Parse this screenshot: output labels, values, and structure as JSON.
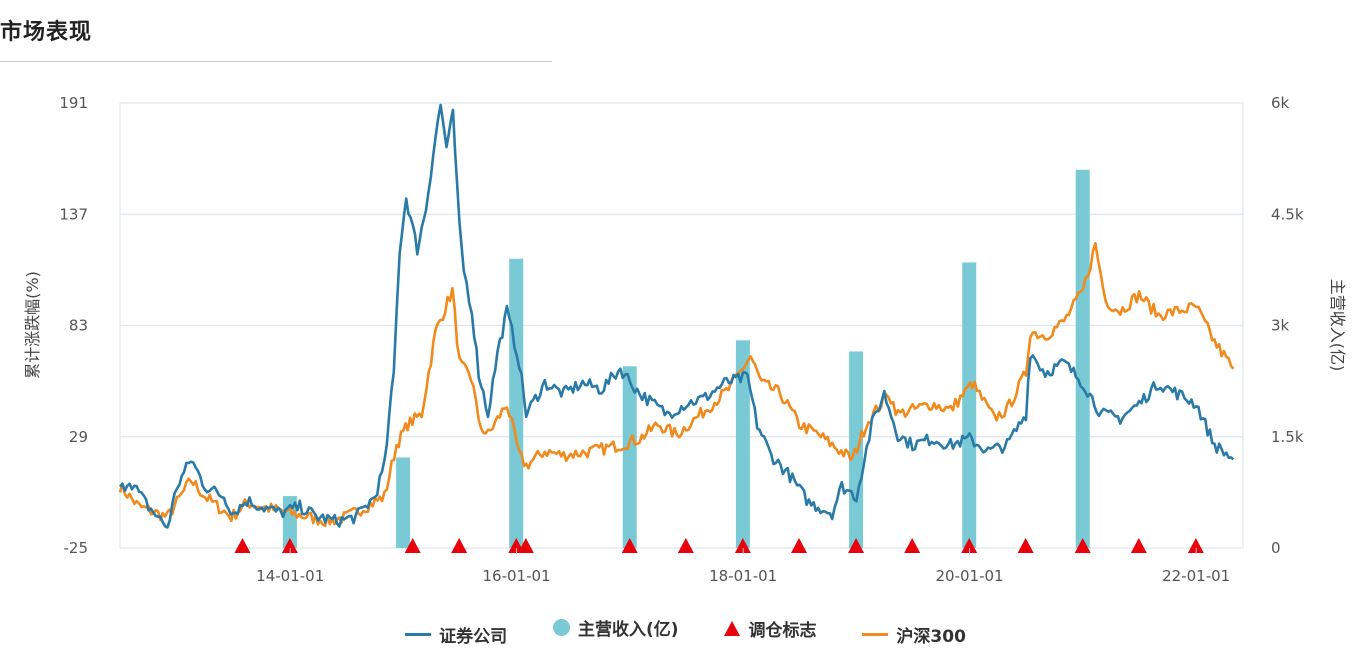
{
  "page": {
    "title": "市场表现"
  },
  "chart_data": {
    "type": "line",
    "title": "市场表现",
    "ylabel_left": "累计涨跌幅(%)",
    "ylabel_right": "主营收入(亿)",
    "yticks_left": [
      "191",
      "137",
      "83",
      "29",
      "-25"
    ],
    "ylim_left": [
      -25,
      191
    ],
    "yticks_right": [
      "6k",
      "4.5k",
      "3k",
      "1.5k",
      "0"
    ],
    "ylim_right": [
      0,
      6000
    ],
    "x_range": [
      "2012-07-01",
      "2022-06-01"
    ],
    "xticks": [
      {
        "label": "14-01-01",
        "date": "2014-01-01"
      },
      {
        "label": "16-01-01",
        "date": "2016-01-01"
      },
      {
        "label": "18-01-01",
        "date": "2018-01-01"
      },
      {
        "label": "20-01-01",
        "date": "2020-01-01"
      },
      {
        "label": "22-01-01",
        "date": "2022-01-01"
      }
    ],
    "grid": true,
    "legend_position": "bottom",
    "legend": [
      {
        "name": "证券公司",
        "type": "line",
        "color": "#2a7aa8"
      },
      {
        "name": "主营收入(亿)",
        "type": "circle",
        "color": "#79cad5"
      },
      {
        "name": "调仓标志",
        "type": "triangle",
        "color": "#e8000b"
      },
      {
        "name": "沪深300",
        "type": "line",
        "color": "#f08a1c"
      }
    ],
    "series": [
      {
        "name": "证券公司",
        "color": "#2a7aa8",
        "points": [
          [
            "2012-07-01",
            3
          ],
          [
            "2012-08-01",
            8
          ],
          [
            "2012-10-01",
            -5
          ],
          [
            "2012-12-01",
            -15
          ],
          [
            "2013-01-01",
            5
          ],
          [
            "2013-02-15",
            18
          ],
          [
            "2013-04-01",
            5
          ],
          [
            "2013-06-01",
            0
          ],
          [
            "2013-07-01",
            -8
          ],
          [
            "2013-08-15",
            -2
          ],
          [
            "2013-10-01",
            -5
          ],
          [
            "2013-12-01",
            -8
          ],
          [
            "2014-02-01",
            -5
          ],
          [
            "2014-04-01",
            -10
          ],
          [
            "2014-06-01",
            -12
          ],
          [
            "2014-08-01",
            -10
          ],
          [
            "2014-10-01",
            0
          ],
          [
            "2014-11-01",
            15
          ],
          [
            "2014-12-01",
            60
          ],
          [
            "2014-12-20",
            120
          ],
          [
            "2015-01-10",
            145
          ],
          [
            "2015-02-15",
            120
          ],
          [
            "2015-03-15",
            140
          ],
          [
            "2015-04-15",
            175
          ],
          [
            "2015-05-01",
            190
          ],
          [
            "2015-05-20",
            170
          ],
          [
            "2015-06-10",
            185
          ],
          [
            "2015-07-01",
            130
          ],
          [
            "2015-07-15",
            110
          ],
          [
            "2015-08-10",
            90
          ],
          [
            "2015-09-01",
            60
          ],
          [
            "2015-10-01",
            40
          ],
          [
            "2015-11-01",
            70
          ],
          [
            "2015-12-01",
            90
          ],
          [
            "2016-01-10",
            65
          ],
          [
            "2016-02-01",
            40
          ],
          [
            "2016-04-01",
            55
          ],
          [
            "2016-06-01",
            50
          ],
          [
            "2016-08-01",
            55
          ],
          [
            "2016-10-01",
            52
          ],
          [
            "2016-12-01",
            62
          ],
          [
            "2017-02-01",
            50
          ],
          [
            "2017-05-01",
            40
          ],
          [
            "2017-07-01",
            45
          ],
          [
            "2017-09-01",
            48
          ],
          [
            "2017-11-01",
            55
          ],
          [
            "2018-01-15",
            58
          ],
          [
            "2018-02-15",
            35
          ],
          [
            "2018-04-01",
            20
          ],
          [
            "2018-06-01",
            10
          ],
          [
            "2018-08-01",
            -3
          ],
          [
            "2018-10-15",
            -8
          ],
          [
            "2018-11-15",
            5
          ],
          [
            "2019-01-01",
            0
          ],
          [
            "2019-02-20",
            35
          ],
          [
            "2019-04-01",
            50
          ],
          [
            "2019-05-15",
            30
          ],
          [
            "2019-07-01",
            25
          ],
          [
            "2019-09-01",
            28
          ],
          [
            "2019-11-01",
            25
          ],
          [
            "2020-01-01",
            28
          ],
          [
            "2020-03-01",
            22
          ],
          [
            "2020-05-01",
            25
          ],
          [
            "2020-07-01",
            40
          ],
          [
            "2020-07-15",
            70
          ],
          [
            "2020-09-01",
            60
          ],
          [
            "2020-11-01",
            65
          ],
          [
            "2021-01-01",
            55
          ],
          [
            "2021-03-01",
            40
          ],
          [
            "2021-05-01",
            38
          ],
          [
            "2021-07-01",
            45
          ],
          [
            "2021-09-01",
            55
          ],
          [
            "2021-11-01",
            50
          ],
          [
            "2022-01-01",
            45
          ],
          [
            "2022-03-01",
            25
          ],
          [
            "2022-05-01",
            18
          ]
        ]
      },
      {
        "name": "沪深300",
        "color": "#f08a1c",
        "points": [
          [
            "2012-07-01",
            5
          ],
          [
            "2012-09-01",
            -5
          ],
          [
            "2012-12-01",
            -10
          ],
          [
            "2013-02-15",
            8
          ],
          [
            "2013-04-01",
            0
          ],
          [
            "2013-06-25",
            -10
          ],
          [
            "2013-08-15",
            -3
          ],
          [
            "2013-10-01",
            -5
          ],
          [
            "2013-12-01",
            -7
          ],
          [
            "2014-03-01",
            -10
          ],
          [
            "2014-05-01",
            -12
          ],
          [
            "2014-07-01",
            -10
          ],
          [
            "2014-09-01",
            -5
          ],
          [
            "2014-11-01",
            0
          ],
          [
            "2014-12-10",
            25
          ],
          [
            "2015-01-15",
            35
          ],
          [
            "2015-03-01",
            40
          ],
          [
            "2015-04-15",
            80
          ],
          [
            "2015-06-08",
            100
          ],
          [
            "2015-07-01",
            65
          ],
          [
            "2015-08-15",
            55
          ],
          [
            "2015-09-01",
            35
          ],
          [
            "2015-10-01",
            30
          ],
          [
            "2015-12-01",
            45
          ],
          [
            "2016-01-10",
            20
          ],
          [
            "2016-02-01",
            15
          ],
          [
            "2016-04-01",
            22
          ],
          [
            "2016-06-01",
            20
          ],
          [
            "2016-09-01",
            22
          ],
          [
            "2016-12-01",
            25
          ],
          [
            "2017-02-01",
            28
          ],
          [
            "2017-04-01",
            35
          ],
          [
            "2017-06-01",
            30
          ],
          [
            "2017-09-01",
            42
          ],
          [
            "2017-11-15",
            52
          ],
          [
            "2018-01-25",
            68
          ],
          [
            "2018-03-01",
            55
          ],
          [
            "2018-05-01",
            50
          ],
          [
            "2018-07-01",
            35
          ],
          [
            "2018-09-01",
            30
          ],
          [
            "2018-10-15",
            25
          ],
          [
            "2018-12-20",
            18
          ],
          [
            "2019-02-01",
            35
          ],
          [
            "2019-04-15",
            50
          ],
          [
            "2019-05-15",
            40
          ],
          [
            "2019-07-01",
            42
          ],
          [
            "2019-09-01",
            45
          ],
          [
            "2019-11-01",
            42
          ],
          [
            "2020-01-10",
            55
          ],
          [
            "2020-03-20",
            38
          ],
          [
            "2020-05-01",
            42
          ],
          [
            "2020-07-01",
            60
          ],
          [
            "2020-07-15",
            80
          ],
          [
            "2020-09-01",
            78
          ],
          [
            "2020-11-01",
            85
          ],
          [
            "2021-01-01",
            100
          ],
          [
            "2021-02-10",
            122
          ],
          [
            "2021-03-15",
            95
          ],
          [
            "2021-05-01",
            90
          ],
          [
            "2021-07-01",
            98
          ],
          [
            "2021-09-01",
            88
          ],
          [
            "2021-11-01",
            90
          ],
          [
            "2022-01-01",
            92
          ],
          [
            "2022-03-01",
            75
          ],
          [
            "2022-05-01",
            62
          ]
        ]
      }
    ],
    "bars": {
      "name": "主营收入(亿)",
      "color": "#79cad5",
      "points": [
        [
          "2013-12-31",
          700
        ],
        [
          "2014-12-31",
          1220
        ],
        [
          "2015-12-31",
          3900
        ],
        [
          "2016-12-31",
          2450
        ],
        [
          "2017-12-31",
          2800
        ],
        [
          "2018-12-31",
          2650
        ],
        [
          "2019-12-31",
          3850
        ],
        [
          "2020-12-31",
          5100
        ]
      ]
    },
    "markers": {
      "name": "调仓标志",
      "color": "#e8000b",
      "dates": [
        "2013-07-31",
        "2013-12-31",
        "2015-01-31",
        "2015-06-30",
        "2015-12-31",
        "2016-01-31",
        "2016-12-31",
        "2017-06-30",
        "2017-12-31",
        "2018-06-30",
        "2018-12-31",
        "2019-06-30",
        "2019-12-31",
        "2020-06-30",
        "2020-12-31",
        "2021-06-30",
        "2021-12-31"
      ]
    }
  }
}
